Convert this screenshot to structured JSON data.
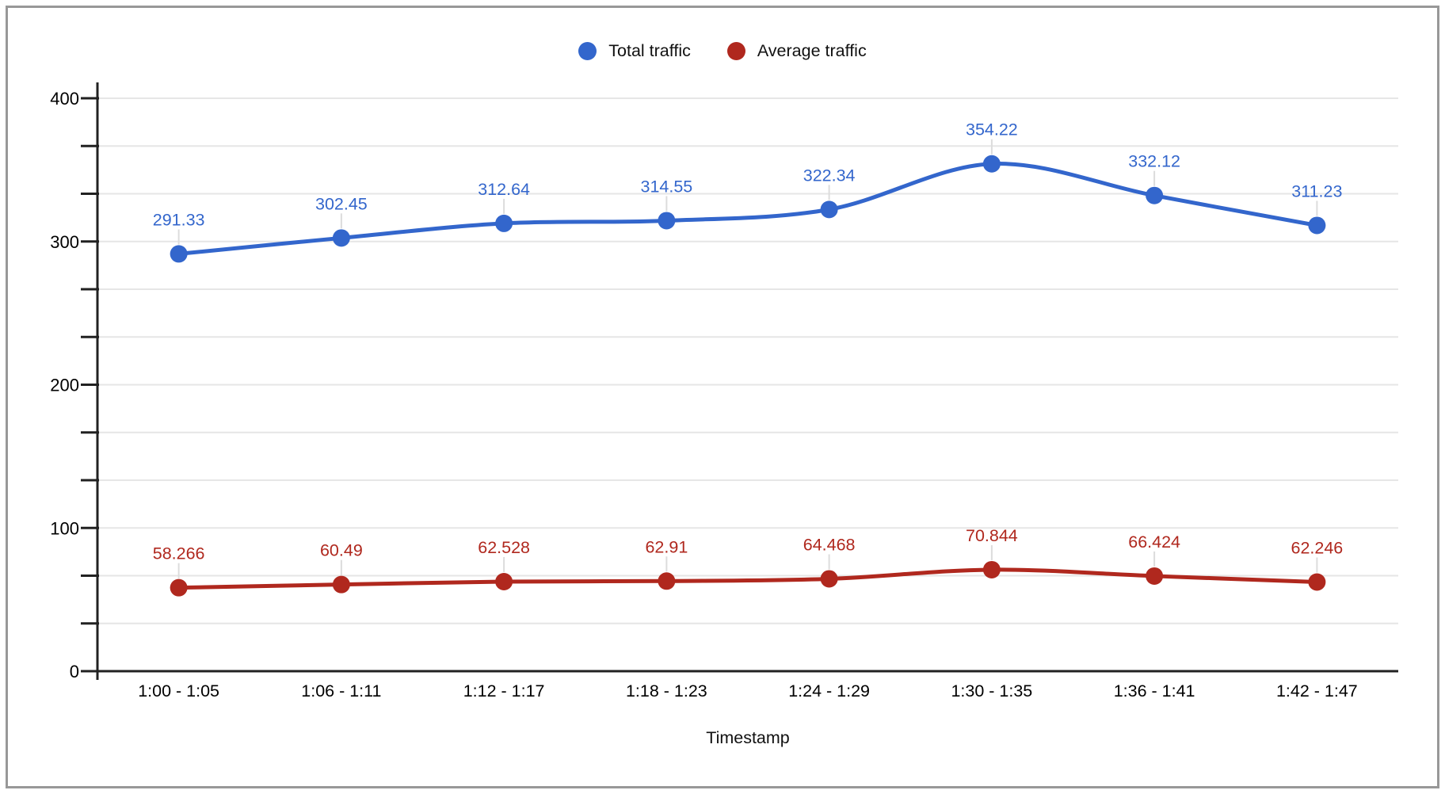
{
  "chart_data": {
    "type": "line",
    "categories": [
      "1:00 - 1:05",
      "1:06 - 1:11",
      "1:12 - 1:17",
      "1:18 - 1:23",
      "1:24 - 1:29",
      "1:30 - 1:35",
      "1:36 - 1:41",
      "1:42 - 1:47"
    ],
    "series": [
      {
        "name": "Total traffic",
        "color": "#3366CC",
        "values": [
          291.33,
          302.45,
          312.64,
          314.55,
          322.34,
          354.22,
          332.12,
          311.23
        ]
      },
      {
        "name": "Average traffic",
        "color": "#B0281E",
        "values": [
          58.266,
          60.49,
          62.528,
          62.91,
          64.468,
          70.844,
          66.424,
          62.246
        ]
      }
    ],
    "xlabel": "Timestamp",
    "ylabel": "",
    "ylim": [
      0,
      400
    ],
    "yticks": [
      0,
      100,
      200,
      300,
      400
    ],
    "minor_gridlines_per_interval": 2,
    "grid": true,
    "legend_position": "top",
    "smooth": true,
    "point_labels_visible": true
  },
  "colors": {
    "axis": "#212121",
    "tick_label": "#000000",
    "gridline": "#E6E6E6",
    "callout": "#DCDCDC",
    "card_border": "#989898",
    "background": "#FFFFFF"
  }
}
